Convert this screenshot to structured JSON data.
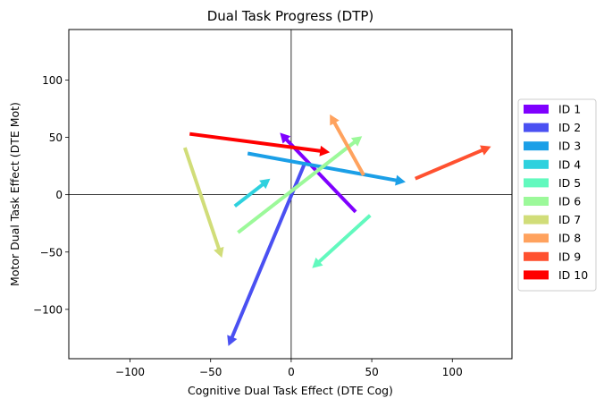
{
  "chart_data": {
    "type": "quiver",
    "title": "Dual Task Progress (DTP)",
    "xlabel": "Cognitive Dual Task Effect (DTE Cog)",
    "ylabel": "Motor Dual Task Effect (DTE Mot)",
    "xlim": [
      -138,
      137
    ],
    "ylim": [
      -143,
      144
    ],
    "xticks": [
      -100,
      -50,
      0,
      50,
      100
    ],
    "yticks": [
      -100,
      -50,
      0,
      50,
      100
    ],
    "xtick_labels": [
      "−100",
      "−50",
      "0",
      "50",
      "100"
    ],
    "ytick_labels": [
      "−100",
      "−50",
      "0",
      "50",
      "100"
    ],
    "reference_lines": {
      "x": 0,
      "y": 0
    },
    "grid": false,
    "legend_position": "right-outside",
    "series": [
      {
        "name": "ID 1",
        "color": "#7f00ff",
        "from": [
          40,
          -15
        ],
        "to": [
          -7,
          54
        ]
      },
      {
        "name": "ID 2",
        "color": "#4a50f2",
        "from": [
          8,
          26
        ],
        "to": [
          -39,
          -132
        ]
      },
      {
        "name": "ID 3",
        "color": "#1b9fe7",
        "from": [
          -27,
          36
        ],
        "to": [
          71,
          11
        ]
      },
      {
        "name": "ID 4",
        "color": "#2ed1de",
        "from": [
          -35,
          -10
        ],
        "to": [
          -13,
          14
        ]
      },
      {
        "name": "ID 5",
        "color": "#62f9be",
        "from": [
          49,
          -18
        ],
        "to": [
          13,
          -64
        ]
      },
      {
        "name": "ID 6",
        "color": "#9cf99a",
        "from": [
          -33,
          -33
        ],
        "to": [
          44,
          51
        ]
      },
      {
        "name": "ID 7",
        "color": "#d1dd79",
        "from": [
          -66,
          41
        ],
        "to": [
          -43,
          -55
        ]
      },
      {
        "name": "ID 8",
        "color": "#ffa25e",
        "from": [
          45,
          17
        ],
        "to": [
          24,
          70
        ]
      },
      {
        "name": "ID 9",
        "color": "#ff5130",
        "from": [
          77,
          14
        ],
        "to": [
          124,
          42
        ]
      },
      {
        "name": "ID 10",
        "color": "#ff0000",
        "from": [
          -63,
          53
        ],
        "to": [
          24,
          37
        ]
      }
    ]
  }
}
